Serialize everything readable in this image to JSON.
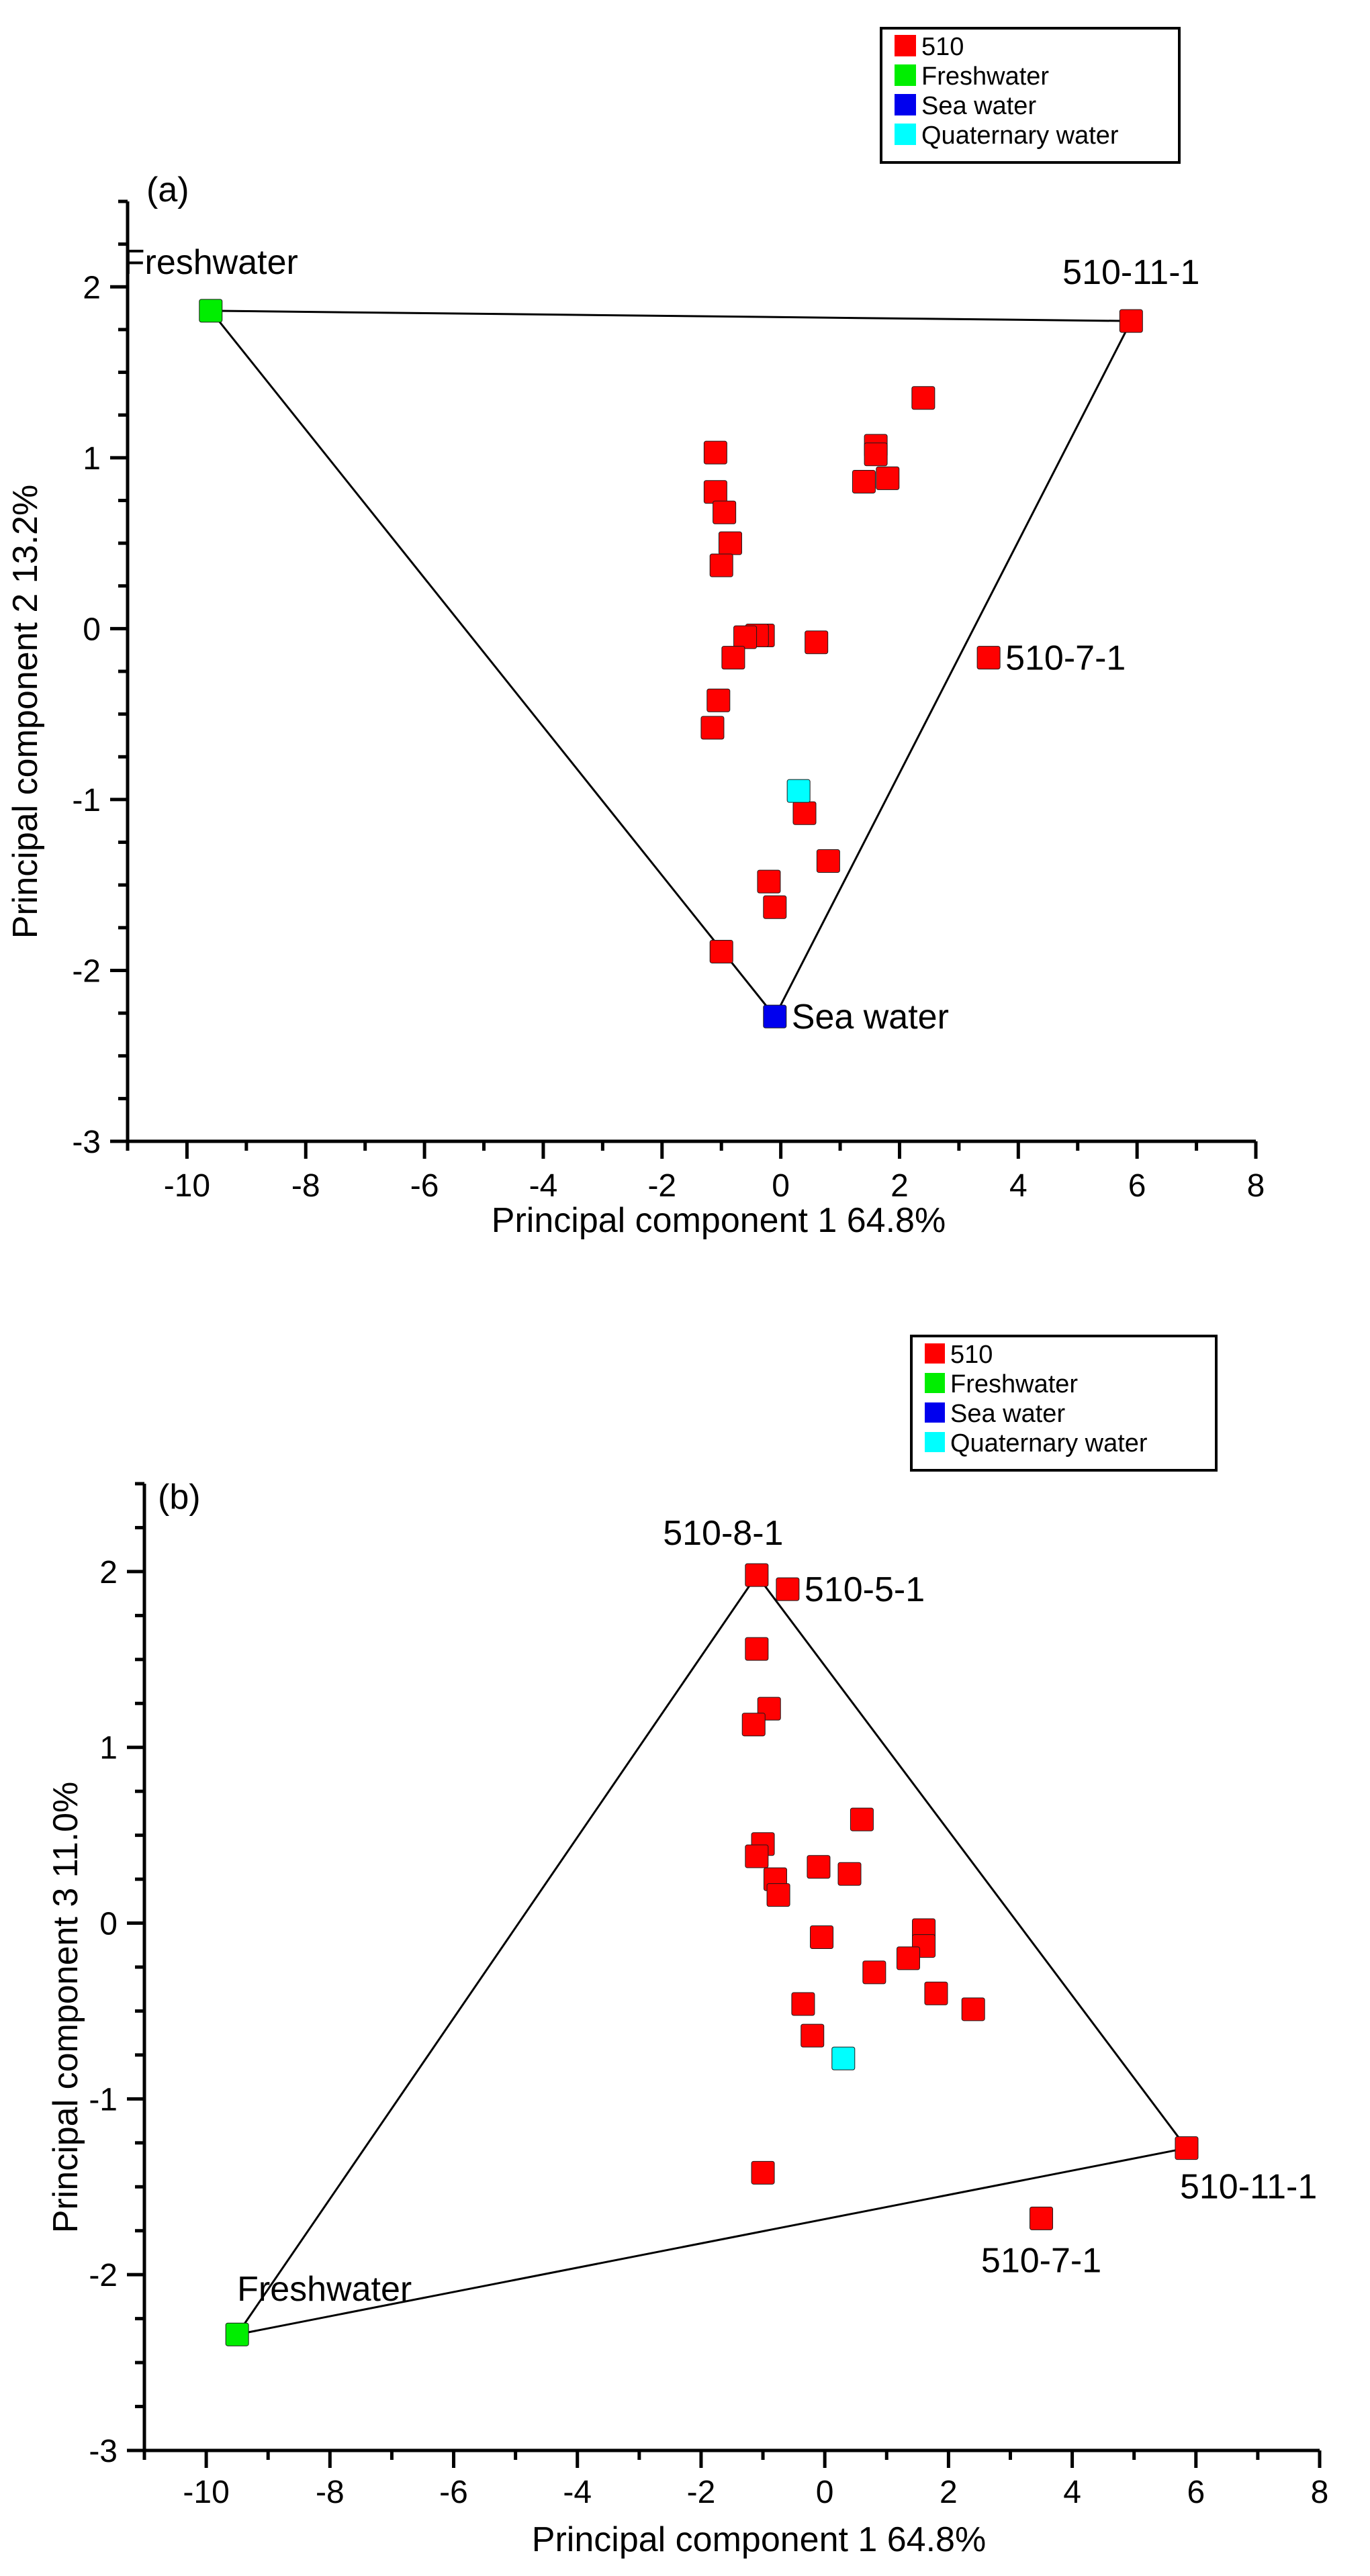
{
  "chart_data": [
    {
      "type": "scatter",
      "panel_label": "(a)",
      "xlabel": "Principal component 1  64.8%",
      "ylabel": "Principal component 2  13.2%",
      "xlim": [
        -11,
        8
      ],
      "ylim": [
        -3,
        2.5
      ],
      "xticks": [
        -10,
        -8,
        -6,
        -4,
        -2,
        0,
        2,
        4,
        6,
        8
      ],
      "yticks": [
        -3,
        -2,
        -1,
        0,
        1,
        2
      ],
      "legend": [
        {
          "label": "510",
          "color": "#ff0000"
        },
        {
          "label": "Freshwater",
          "color": "#00ee00"
        },
        {
          "label": "Sea water",
          "color": "#0000ee"
        },
        {
          "label": "Quaternary water",
          "color": "#00ffff"
        }
      ],
      "series": [
        {
          "name": "510",
          "color": "#ff0000",
          "points": [
            [
              5.9,
              1.8
            ],
            [
              2.4,
              1.35
            ],
            [
              1.6,
              1.07
            ],
            [
              1.6,
              1.02
            ],
            [
              1.8,
              0.88
            ],
            [
              1.4,
              0.86
            ],
            [
              -1.1,
              1.03
            ],
            [
              -1.1,
              0.8
            ],
            [
              -0.95,
              0.68
            ],
            [
              -0.85,
              0.5
            ],
            [
              -1.0,
              0.37
            ],
            [
              -0.3,
              -0.04
            ],
            [
              -0.4,
              -0.04
            ],
            [
              -0.6,
              -0.05
            ],
            [
              0.6,
              -0.08
            ],
            [
              -0.8,
              -0.17
            ],
            [
              3.5,
              -0.17
            ],
            [
              -1.05,
              -0.42
            ],
            [
              -1.15,
              -0.58
            ],
            [
              0.4,
              -1.08
            ],
            [
              0.8,
              -1.36
            ],
            [
              -0.2,
              -1.48
            ],
            [
              -0.1,
              -1.63
            ],
            [
              -1.0,
              -1.89
            ]
          ]
        },
        {
          "name": "Freshwater",
          "color": "#00ee00",
          "points": [
            [
              -9.6,
              1.86
            ]
          ]
        },
        {
          "name": "Sea water",
          "color": "#0000ee",
          "points": [
            [
              -0.1,
              -2.27
            ]
          ]
        },
        {
          "name": "Quaternary water",
          "color": "#00ffff",
          "points": [
            [
              0.3,
              -0.95
            ]
          ]
        }
      ],
      "polygon": [
        [
          -9.6,
          1.86
        ],
        [
          5.9,
          1.8
        ],
        [
          -0.1,
          -2.27
        ]
      ],
      "annotations": [
        {
          "text": "Freshwater",
          "x": -9.6,
          "y": 1.86,
          "anchor": "above"
        },
        {
          "text": "510-11-1",
          "x": 5.9,
          "y": 1.8,
          "anchor": "above"
        },
        {
          "text": "510-7-1",
          "x": 3.5,
          "y": -0.17,
          "anchor": "right"
        },
        {
          "text": "Sea  water",
          "x": -0.1,
          "y": -2.27,
          "anchor": "right"
        }
      ]
    },
    {
      "type": "scatter",
      "panel_label": "(b)",
      "xlabel": "Principal component 1  64.8%",
      "ylabel": "Principal component 3  11.0%",
      "xlim": [
        -11,
        8
      ],
      "ylim": [
        -3,
        2.5
      ],
      "xticks": [
        -10,
        -8,
        -6,
        -4,
        -2,
        0,
        2,
        4,
        6,
        8
      ],
      "yticks": [
        -3,
        -2,
        -1,
        0,
        1,
        2
      ],
      "legend": [
        {
          "label": "510",
          "color": "#ff0000"
        },
        {
          "label": "Freshwater",
          "color": "#00ee00"
        },
        {
          "label": "Sea water",
          "color": "#0000ee"
        },
        {
          "label": "Quaternary water",
          "color": "#00ffff"
        }
      ],
      "series": [
        {
          "name": "510",
          "color": "#ff0000",
          "points": [
            [
              -1.1,
              1.98
            ],
            [
              -0.6,
              1.9
            ],
            [
              -1.1,
              1.56
            ],
            [
              -0.9,
              1.22
            ],
            [
              -1.15,
              1.13
            ],
            [
              0.6,
              0.59
            ],
            [
              -1.0,
              0.45
            ],
            [
              -1.1,
              0.38
            ],
            [
              -0.1,
              0.32
            ],
            [
              0.4,
              0.28
            ],
            [
              -0.8,
              0.25
            ],
            [
              -0.75,
              0.16
            ],
            [
              1.6,
              -0.04
            ],
            [
              -0.05,
              -0.08
            ],
            [
              1.6,
              -0.13
            ],
            [
              1.35,
              -0.2
            ],
            [
              0.8,
              -0.28
            ],
            [
              1.8,
              -0.4
            ],
            [
              2.4,
              -0.49
            ],
            [
              -0.35,
              -0.46
            ],
            [
              -0.2,
              -0.64
            ],
            [
              5.85,
              -1.28
            ],
            [
              -1.0,
              -1.42
            ],
            [
              3.5,
              -1.68
            ]
          ]
        },
        {
          "name": "Freshwater",
          "color": "#00ee00",
          "points": [
            [
              -9.5,
              -2.34
            ]
          ]
        },
        {
          "name": "Sea water",
          "color": "#0000ee",
          "points": []
        },
        {
          "name": "Quaternary water",
          "color": "#00ffff",
          "points": [
            [
              0.3,
              -0.77
            ]
          ]
        }
      ],
      "polygon": [
        [
          -1.1,
          1.98
        ],
        [
          5.85,
          -1.28
        ],
        [
          -9.5,
          -2.34
        ]
      ],
      "annotations": [
        {
          "text": "510-8-1",
          "x": -1.1,
          "y": 1.98,
          "anchor": "above-left"
        },
        {
          "text": "510-5-1",
          "x": -0.6,
          "y": 1.9,
          "anchor": "right"
        },
        {
          "text": "510-11-1",
          "x": 5.85,
          "y": -1.28,
          "anchor": "below-right"
        },
        {
          "text": "510-7-1",
          "x": 3.5,
          "y": -1.68,
          "anchor": "below"
        },
        {
          "text": "Freshwater",
          "x": -9.5,
          "y": -2.34,
          "anchor": "above-right"
        }
      ]
    }
  ]
}
